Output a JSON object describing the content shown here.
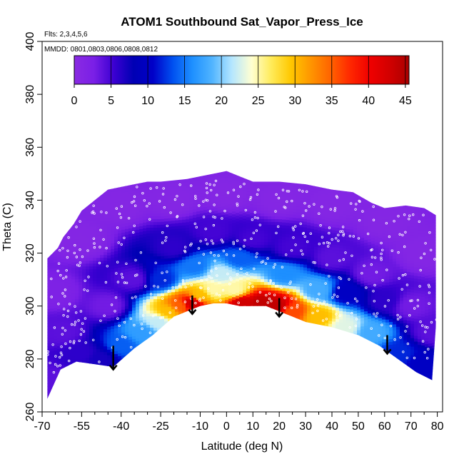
{
  "chart_data": {
    "type": "heatmap",
    "title": "ATOM1 Southbound Sat_Vapor_Press_Ice",
    "subtitle_flights": "Flts: 2,3,4,5,6",
    "subtitle_dates": "MMDD: 0801,0803,0806,0808,0812",
    "xlabel": "Latitude (deg N)",
    "ylabel": "Theta (C)",
    "xlim": [
      -70,
      82
    ],
    "ylim": [
      260,
      400
    ],
    "x_major_ticks": [
      -70,
      -55,
      -40,
      -25,
      -10,
      0,
      10,
      20,
      30,
      40,
      50,
      60,
      70,
      80
    ],
    "x_minor_ticks": [
      -65,
      -60,
      -50,
      -45,
      -35,
      -30,
      -20,
      -15,
      -5,
      5,
      15,
      25,
      35,
      45,
      55,
      65,
      75
    ],
    "x_tick_labels": [
      "-70",
      "-55",
      "-40",
      "-25",
      "-10",
      "0",
      "10",
      "20",
      "30",
      "40",
      "50",
      "60",
      "70",
      "80"
    ],
    "y_ticks": [
      260,
      280,
      300,
      320,
      340,
      360,
      380,
      400
    ],
    "y_tick_labels": [
      "260",
      "280",
      "300",
      "320",
      "340",
      "360",
      "380",
      "400"
    ],
    "colorbar": {
      "min": 0,
      "max": 45.5,
      "ticks": [
        0,
        5,
        10,
        15,
        20,
        25,
        30,
        35,
        40,
        45
      ],
      "tick_labels": [
        "0",
        "5",
        "10",
        "15",
        "20",
        "25",
        "30",
        "35",
        "40",
        "45"
      ],
      "colors": [
        "#8a2be2",
        "#7a1fe6",
        "#3c00d2",
        "#0000b4",
        "#0000c8",
        "#0050f0",
        "#1e90ff",
        "#50b4ff",
        "#b4e6ff",
        "#ffffd2",
        "#ffeb5a",
        "#ffc800",
        "#ff9600",
        "#ff6400",
        "#ff2800",
        "#f00000",
        "#d20000",
        "#aa0000"
      ]
    },
    "upper_boundary": [
      [
        -68,
        318
      ],
      [
        -66,
        320
      ],
      [
        -64,
        322
      ],
      [
        -62,
        326
      ],
      [
        -58,
        331
      ],
      [
        -55,
        336
      ],
      [
        -50,
        340
      ],
      [
        -45,
        344
      ],
      [
        -40,
        345
      ],
      [
        -35,
        346
      ],
      [
        -30,
        347
      ],
      [
        -25,
        347
      ],
      [
        -15,
        348
      ],
      [
        -5,
        350
      ],
      [
        0,
        351
      ],
      [
        5,
        349
      ],
      [
        10,
        347
      ],
      [
        20,
        347
      ],
      [
        30,
        346
      ],
      [
        40,
        344
      ],
      [
        48,
        343
      ],
      [
        55,
        339
      ],
      [
        60,
        337
      ],
      [
        68,
        338
      ],
      [
        75,
        337
      ],
      [
        80,
        334
      ],
      [
        80,
        300
      ]
    ],
    "lower_boundary": [
      [
        -68,
        265
      ],
      [
        -63,
        276
      ],
      [
        -57,
        279
      ],
      [
        -50,
        278
      ],
      [
        -43,
        277
      ],
      [
        -35,
        284
      ],
      [
        -28,
        289
      ],
      [
        -20,
        296
      ],
      [
        -15,
        298
      ],
      [
        -10,
        300
      ],
      [
        -5,
        301
      ],
      [
        0,
        301
      ],
      [
        5,
        300
      ],
      [
        10,
        300
      ],
      [
        15,
        300
      ],
      [
        20,
        298
      ],
      [
        25,
        296
      ],
      [
        30,
        294
      ],
      [
        40,
        292
      ],
      [
        50,
        289
      ],
      [
        58,
        285
      ],
      [
        65,
        280
      ],
      [
        72,
        275
      ],
      [
        78,
        272
      ]
    ],
    "field_points": [
      {
        "lat": -67,
        "theta": 272,
        "value": 4
      },
      {
        "lat": -62,
        "theta": 290,
        "value": 4
      },
      {
        "lat": -55,
        "theta": 282,
        "value": 6
      },
      {
        "lat": -48,
        "theta": 280,
        "value": 7
      },
      {
        "lat": -40,
        "theta": 285,
        "value": 14
      },
      {
        "lat": -32,
        "theta": 290,
        "value": 17
      },
      {
        "lat": -26,
        "theta": 294,
        "value": 22
      },
      {
        "lat": -22,
        "theta": 298,
        "value": 30
      },
      {
        "lat": -18,
        "theta": 300,
        "value": 35
      },
      {
        "lat": -13,
        "theta": 301,
        "value": 43
      },
      {
        "lat": -10,
        "theta": 304,
        "value": 30
      },
      {
        "lat": -5,
        "theta": 306,
        "value": 25
      },
      {
        "lat": -2,
        "theta": 312,
        "value": 22
      },
      {
        "lat": 3,
        "theta": 306,
        "value": 25
      },
      {
        "lat": 6,
        "theta": 301,
        "value": 43
      },
      {
        "lat": 13,
        "theta": 301,
        "value": 44
      },
      {
        "lat": 19,
        "theta": 300,
        "value": 44
      },
      {
        "lat": 25,
        "theta": 298,
        "value": 36
      },
      {
        "lat": 35,
        "theta": 296,
        "value": 30
      },
      {
        "lat": 45,
        "theta": 292,
        "value": 23
      },
      {
        "lat": 55,
        "theta": 290,
        "value": 18
      },
      {
        "lat": 65,
        "theta": 282,
        "value": 12
      },
      {
        "lat": 75,
        "theta": 278,
        "value": 10
      },
      {
        "lat": -25,
        "theta": 310,
        "value": 12
      },
      {
        "lat": -12,
        "theta": 315,
        "value": 15
      },
      {
        "lat": 5,
        "theta": 318,
        "value": 14
      },
      {
        "lat": 22,
        "theta": 312,
        "value": 16
      },
      {
        "lat": 35,
        "theta": 306,
        "value": 18
      },
      {
        "lat": 45,
        "theta": 305,
        "value": 10
      },
      {
        "lat": 60,
        "theta": 302,
        "value": 6
      },
      {
        "lat": -45,
        "theta": 300,
        "value": 3
      },
      {
        "lat": -35,
        "theta": 310,
        "value": 4
      },
      {
        "lat": -20,
        "theta": 322,
        "value": 6
      },
      {
        "lat": -5,
        "theta": 328,
        "value": 5
      },
      {
        "lat": 10,
        "theta": 325,
        "value": 5
      },
      {
        "lat": 25,
        "theta": 322,
        "value": 5
      },
      {
        "lat": 40,
        "theta": 318,
        "value": 4
      },
      {
        "lat": 55,
        "theta": 312,
        "value": 3
      },
      {
        "lat": 70,
        "theta": 300,
        "value": 3
      },
      {
        "lat": -55,
        "theta": 325,
        "value": 1
      },
      {
        "lat": -40,
        "theta": 338,
        "value": 1
      },
      {
        "lat": -20,
        "theta": 340,
        "value": 1
      },
      {
        "lat": 0,
        "theta": 342,
        "value": 1
      },
      {
        "lat": 20,
        "theta": 340,
        "value": 1
      },
      {
        "lat": 40,
        "theta": 338,
        "value": 1
      },
      {
        "lat": 60,
        "theta": 332,
        "value": 1
      },
      {
        "lat": 75,
        "theta": 320,
        "value": 1
      },
      {
        "lat": -65,
        "theta": 305,
        "value": 2
      },
      {
        "lat": 78,
        "theta": 290,
        "value": 4
      }
    ],
    "arrows": [
      {
        "lat": -43,
        "theta_from": 285,
        "theta_to": 276
      },
      {
        "lat": -13,
        "theta_from": 304,
        "theta_to": 297
      },
      {
        "lat": 20,
        "theta_from": 303,
        "theta_to": 296
      },
      {
        "lat": 61,
        "theta_from": 289,
        "theta_to": 282
      }
    ]
  }
}
